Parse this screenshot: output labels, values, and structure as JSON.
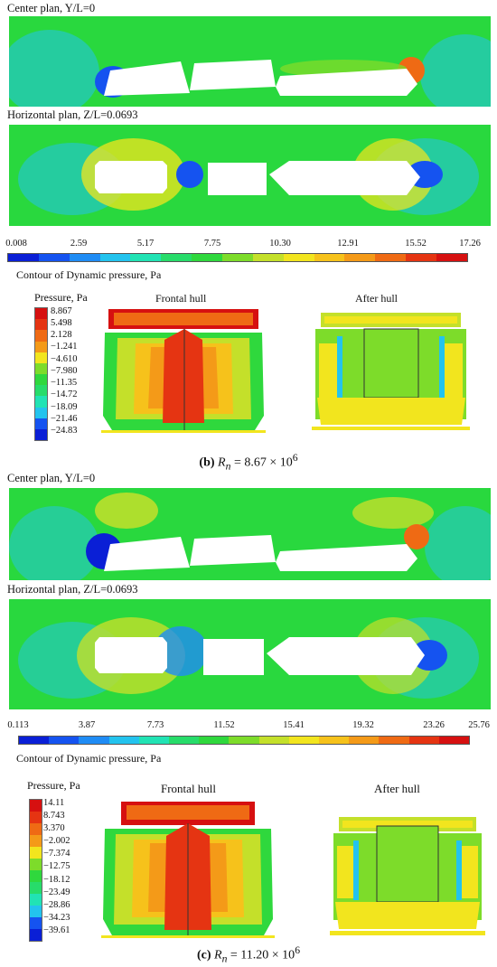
{
  "sections": [
    {
      "center_title": "Center plan, Y/L=0",
      "horizontal_title": "Horizontal plan, Z/L=0.0693",
      "dyn_ticks": [
        "0.008",
        "2.59",
        "5.17",
        "7.75",
        "10.30",
        "12.91",
        "15.52",
        "17.26"
      ],
      "dyn_label": "Contour of Dynamic pressure, Pa",
      "pressure_title": "Pressure, Pa",
      "pressure_values": [
        "8.867",
        "5.498",
        "2.128",
        "−1.241",
        "−4.610",
        "−7.980",
        "−11.35",
        "−14.72",
        "−18.09",
        "−21.46",
        "−24.83"
      ],
      "frontal_label": "Frontal hull",
      "after_label": "After hull",
      "caption_letter": "(b)",
      "caption_sym": "R",
      "caption_sub": "n",
      "caption_eq": " = 8.67 × 10",
      "caption_exp": "6"
    },
    {
      "center_title": "Center plan, Y/L=0",
      "horizontal_title": "Horizontal plan, Z/L=0.0693",
      "dyn_ticks": [
        "0.113",
        "3.87",
        "7.73",
        "11.52",
        "15.41",
        "19.32",
        "23.26",
        "25.76"
      ],
      "dyn_label": "Contour of Dynamic pressure, Pa",
      "pressure_title": "Pressure, Pa",
      "pressure_values": [
        "14.11",
        "8.743",
        "3.370",
        "−2.002",
        "−7.374",
        "−12.75",
        "−18.12",
        "−23.49",
        "−28.86",
        "−34.23",
        "−39.61"
      ],
      "frontal_label": "Frontal hull",
      "after_label": "After hull",
      "caption_letter": "(c)",
      "caption_sym": "R",
      "caption_sub": "n",
      "caption_eq": " = 11.20 × 10",
      "caption_exp": "6"
    }
  ],
  "colormap": [
    "#0a1fd6",
    "#1553f0",
    "#1f8cf5",
    "#23c3ee",
    "#21e3b4",
    "#27dc6a",
    "#2fd83d",
    "#7ddc2a",
    "#c4e02a",
    "#f2e51e",
    "#f6c21b",
    "#f49a18",
    "#ef6a14",
    "#e53412",
    "#d61010"
  ]
}
